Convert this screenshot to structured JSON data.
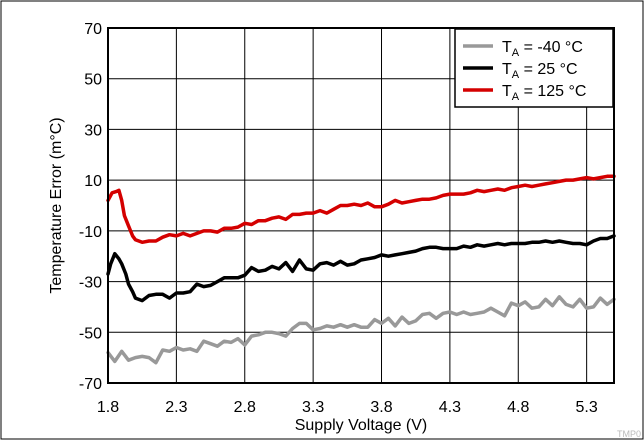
{
  "chart_data": {
    "type": "line",
    "xlabel": "Supply Voltage (V)",
    "ylabel": "Temperature Error (m°C)",
    "xlim": [
      1.8,
      5.5
    ],
    "ylim": [
      -70,
      70
    ],
    "x_ticks": [
      "1.8",
      "2.3",
      "2.8",
      "3.3",
      "3.8",
      "4.3",
      "4.8",
      "5.3"
    ],
    "x_tick_values": [
      1.8,
      2.3,
      2.8,
      3.3,
      3.8,
      4.3,
      4.8,
      5.3
    ],
    "y_ticks": [
      "70",
      "50",
      "30",
      "10",
      "-10",
      "-30",
      "-50",
      "-70"
    ],
    "y_tick_values": [
      70,
      50,
      30,
      10,
      -10,
      -30,
      -50,
      -70
    ],
    "grid": true,
    "legend_position": "top-right",
    "series": [
      {
        "name_prefix": "T",
        "name_sub": "A",
        "name_suffix": " = -40 °C",
        "color": "#999999",
        "points": [
          [
            1.8,
            -58
          ],
          [
            1.85,
            -61.5
          ],
          [
            1.9,
            -57.5
          ],
          [
            1.95,
            -61
          ],
          [
            2.0,
            -60
          ],
          [
            2.05,
            -59.5
          ],
          [
            2.1,
            -60
          ],
          [
            2.15,
            -62
          ],
          [
            2.2,
            -57
          ],
          [
            2.25,
            -57.5
          ],
          [
            2.3,
            -56
          ],
          [
            2.35,
            -57
          ],
          [
            2.4,
            -56.5
          ],
          [
            2.45,
            -57.5
          ],
          [
            2.5,
            -53.5
          ],
          [
            2.55,
            -54.5
          ],
          [
            2.6,
            -55.5
          ],
          [
            2.65,
            -53.5
          ],
          [
            2.7,
            -54
          ],
          [
            2.75,
            -52.5
          ],
          [
            2.8,
            -55
          ],
          [
            2.85,
            -51.5
          ],
          [
            2.9,
            -51
          ],
          [
            2.95,
            -50
          ],
          [
            3.0,
            -50
          ],
          [
            3.05,
            -50.5
          ],
          [
            3.1,
            -51.5
          ],
          [
            3.15,
            -48.5
          ],
          [
            3.2,
            -46.5
          ],
          [
            3.25,
            -46.5
          ],
          [
            3.3,
            -49
          ],
          [
            3.35,
            -48.5
          ],
          [
            3.4,
            -47.5
          ],
          [
            3.45,
            -48
          ],
          [
            3.5,
            -47
          ],
          [
            3.55,
            -48
          ],
          [
            3.6,
            -47
          ],
          [
            3.65,
            -48
          ],
          [
            3.7,
            -48
          ],
          [
            3.75,
            -45
          ],
          [
            3.8,
            -46.5
          ],
          [
            3.85,
            -44.5
          ],
          [
            3.9,
            -47.5
          ],
          [
            3.95,
            -44
          ],
          [
            4.0,
            -46.5
          ],
          [
            4.05,
            -45.5
          ],
          [
            4.1,
            -43
          ],
          [
            4.15,
            -42.5
          ],
          [
            4.2,
            -44.5
          ],
          [
            4.25,
            -42.5
          ],
          [
            4.3,
            -42
          ],
          [
            4.35,
            -43
          ],
          [
            4.4,
            -42
          ],
          [
            4.45,
            -43
          ],
          [
            4.5,
            -42.5
          ],
          [
            4.55,
            -42
          ],
          [
            4.6,
            -40.5
          ],
          [
            4.65,
            -42
          ],
          [
            4.7,
            -43.5
          ],
          [
            4.75,
            -38.5
          ],
          [
            4.8,
            -39.5
          ],
          [
            4.85,
            -38
          ],
          [
            4.9,
            -40.5
          ],
          [
            4.95,
            -40
          ],
          [
            5.0,
            -37
          ],
          [
            5.05,
            -39.5
          ],
          [
            5.1,
            -36
          ],
          [
            5.15,
            -39
          ],
          [
            5.2,
            -40
          ],
          [
            5.25,
            -37
          ],
          [
            5.3,
            -40.5
          ],
          [
            5.35,
            -40
          ],
          [
            5.4,
            -36.5
          ],
          [
            5.45,
            -39
          ],
          [
            5.5,
            -37
          ]
        ]
      },
      {
        "name_prefix": "T",
        "name_sub": "A",
        "name_suffix": " = 25 °C",
        "color": "#000000",
        "points": [
          [
            1.8,
            -27
          ],
          [
            1.82,
            -23
          ],
          [
            1.85,
            -19
          ],
          [
            1.88,
            -21
          ],
          [
            1.9,
            -23
          ],
          [
            1.93,
            -27
          ],
          [
            1.95,
            -31
          ],
          [
            1.98,
            -34
          ],
          [
            2.0,
            -36.5
          ],
          [
            2.05,
            -37.5
          ],
          [
            2.1,
            -35.5
          ],
          [
            2.15,
            -35
          ],
          [
            2.2,
            -35
          ],
          [
            2.25,
            -36.5
          ],
          [
            2.3,
            -34.5
          ],
          [
            2.35,
            -34.5
          ],
          [
            2.4,
            -34
          ],
          [
            2.45,
            -31
          ],
          [
            2.5,
            -32
          ],
          [
            2.55,
            -31.5
          ],
          [
            2.6,
            -30
          ],
          [
            2.65,
            -28.5
          ],
          [
            2.7,
            -28.5
          ],
          [
            2.75,
            -28.5
          ],
          [
            2.8,
            -27.5
          ],
          [
            2.85,
            -24.5
          ],
          [
            2.9,
            -26
          ],
          [
            2.95,
            -25.5
          ],
          [
            3.0,
            -24
          ],
          [
            3.05,
            -25
          ],
          [
            3.1,
            -22.5
          ],
          [
            3.15,
            -26
          ],
          [
            3.2,
            -21.5
          ],
          [
            3.25,
            -25
          ],
          [
            3.3,
            -25.5
          ],
          [
            3.35,
            -23
          ],
          [
            3.4,
            -22.5
          ],
          [
            3.45,
            -23.5
          ],
          [
            3.5,
            -22
          ],
          [
            3.55,
            -23.5
          ],
          [
            3.6,
            -23
          ],
          [
            3.65,
            -21.5
          ],
          [
            3.7,
            -21
          ],
          [
            3.75,
            -20.5
          ],
          [
            3.8,
            -19.5
          ],
          [
            3.85,
            -20
          ],
          [
            3.9,
            -19.5
          ],
          [
            3.95,
            -19
          ],
          [
            4.0,
            -18.5
          ],
          [
            4.05,
            -18
          ],
          [
            4.1,
            -17
          ],
          [
            4.15,
            -16.5
          ],
          [
            4.2,
            -16.5
          ],
          [
            4.25,
            -17
          ],
          [
            4.3,
            -17
          ],
          [
            4.35,
            -17
          ],
          [
            4.4,
            -16
          ],
          [
            4.45,
            -16.5
          ],
          [
            4.5,
            -15.5
          ],
          [
            4.55,
            -16
          ],
          [
            4.6,
            -15.5
          ],
          [
            4.65,
            -15
          ],
          [
            4.7,
            -15.5
          ],
          [
            4.75,
            -15
          ],
          [
            4.8,
            -15
          ],
          [
            4.85,
            -15
          ],
          [
            4.9,
            -14.5
          ],
          [
            4.95,
            -14.5
          ],
          [
            5.0,
            -14
          ],
          [
            5.05,
            -14.5
          ],
          [
            5.1,
            -14
          ],
          [
            5.15,
            -14.5
          ],
          [
            5.2,
            -15
          ],
          [
            5.25,
            -15
          ],
          [
            5.3,
            -15.5
          ],
          [
            5.35,
            -14
          ],
          [
            5.4,
            -13
          ],
          [
            5.45,
            -13
          ],
          [
            5.5,
            -12
          ]
        ]
      },
      {
        "name_prefix": "T",
        "name_sub": "A",
        "name_suffix": " = 125 °C",
        "color": "#d40000",
        "points": [
          [
            1.8,
            2
          ],
          [
            1.83,
            5
          ],
          [
            1.86,
            5.5
          ],
          [
            1.88,
            6
          ],
          [
            1.9,
            2
          ],
          [
            1.92,
            -4
          ],
          [
            1.95,
            -8
          ],
          [
            1.98,
            -12
          ],
          [
            2.0,
            -13.5
          ],
          [
            2.05,
            -14.5
          ],
          [
            2.1,
            -14
          ],
          [
            2.15,
            -14
          ],
          [
            2.2,
            -12.5
          ],
          [
            2.25,
            -11.5
          ],
          [
            2.3,
            -12
          ],
          [
            2.35,
            -11
          ],
          [
            2.4,
            -12
          ],
          [
            2.45,
            -11
          ],
          [
            2.5,
            -10
          ],
          [
            2.55,
            -10
          ],
          [
            2.6,
            -10.5
          ],
          [
            2.65,
            -9
          ],
          [
            2.7,
            -9
          ],
          [
            2.75,
            -8.5
          ],
          [
            2.8,
            -7
          ],
          [
            2.85,
            -7.5
          ],
          [
            2.9,
            -6
          ],
          [
            2.95,
            -6
          ],
          [
            3.0,
            -5
          ],
          [
            3.05,
            -4.5
          ],
          [
            3.1,
            -5.5
          ],
          [
            3.15,
            -3.5
          ],
          [
            3.2,
            -3.5
          ],
          [
            3.25,
            -3
          ],
          [
            3.3,
            -3
          ],
          [
            3.35,
            -2
          ],
          [
            3.4,
            -3
          ],
          [
            3.45,
            -1.5
          ],
          [
            3.5,
            0
          ],
          [
            3.55,
            0
          ],
          [
            3.6,
            0.5
          ],
          [
            3.65,
            0
          ],
          [
            3.7,
            1
          ],
          [
            3.75,
            -0.5
          ],
          [
            3.8,
            -0.5
          ],
          [
            3.85,
            0.5
          ],
          [
            3.9,
            2
          ],
          [
            3.95,
            1
          ],
          [
            4.0,
            1.5
          ],
          [
            4.05,
            2
          ],
          [
            4.1,
            2.5
          ],
          [
            4.15,
            2.5
          ],
          [
            4.2,
            3
          ],
          [
            4.25,
            4
          ],
          [
            4.3,
            4.5
          ],
          [
            4.35,
            4.5
          ],
          [
            4.4,
            4.5
          ],
          [
            4.45,
            5
          ],
          [
            4.5,
            6
          ],
          [
            4.55,
            5.5
          ],
          [
            4.6,
            6
          ],
          [
            4.65,
            6.5
          ],
          [
            4.7,
            6
          ],
          [
            4.75,
            7
          ],
          [
            4.8,
            7.5
          ],
          [
            4.85,
            8
          ],
          [
            4.9,
            7.5
          ],
          [
            4.95,
            8
          ],
          [
            5.0,
            8.5
          ],
          [
            5.05,
            9
          ],
          [
            5.1,
            9.5
          ],
          [
            5.15,
            10
          ],
          [
            5.2,
            10
          ],
          [
            5.25,
            10.5
          ],
          [
            5.3,
            11
          ],
          [
            5.35,
            10.5
          ],
          [
            5.4,
            11
          ],
          [
            5.45,
            11.5
          ],
          [
            5.5,
            11.5
          ]
        ]
      }
    ]
  },
  "watermark_text": "TMP0"
}
